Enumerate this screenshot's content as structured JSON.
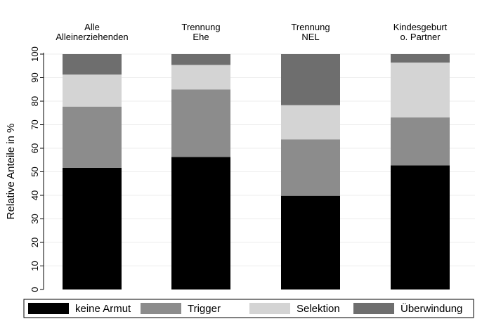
{
  "chart_data": {
    "type": "bar",
    "stacked": true,
    "categories": [
      [
        "Alle",
        "Alleinerziehenden"
      ],
      [
        "Trennung",
        "Ehe"
      ],
      [
        "Trennung",
        "NEL"
      ],
      [
        "Kindesgeburt",
        "o. Partner"
      ]
    ],
    "series": [
      {
        "name": "keine Armut",
        "color": "#000000",
        "values": [
          51.7,
          56.3,
          39.8,
          52.7
        ]
      },
      {
        "name": "Trigger",
        "color": "#8c8c8c",
        "values": [
          26.0,
          28.7,
          24.0,
          20.4
        ]
      },
      {
        "name": "Selektion",
        "color": "#d4d4d4",
        "values": [
          13.6,
          10.4,
          14.5,
          23.3
        ]
      },
      {
        "name": "Überwindung",
        "color": "#6e6e6e",
        "values": [
          8.7,
          4.6,
          21.7,
          3.6
        ]
      }
    ],
    "ylabel": "Relative Anteile in %",
    "xlabel": "",
    "ylim": [
      0,
      100
    ],
    "yticks": [
      0,
      10,
      20,
      30,
      40,
      50,
      60,
      70,
      80,
      90,
      100
    ],
    "grid": true,
    "legend_position": "bottom"
  }
}
